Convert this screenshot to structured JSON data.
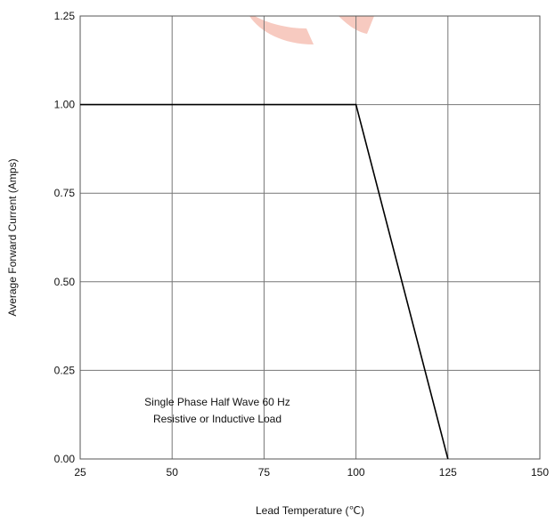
{
  "chart_data": {
    "type": "line",
    "xlabel": "Lead Temperature (℃)",
    "ylabel": "Average Forward Current (Amps)",
    "xlim": [
      25,
      150
    ],
    "ylim": [
      0,
      1.25
    ],
    "x_ticks": [
      "25",
      "50",
      "75",
      "100",
      "125",
      "150"
    ],
    "y_ticks": [
      "0.00",
      "0.25",
      "0.50",
      "0.75",
      "1.00",
      "1.25"
    ],
    "grid": true,
    "series": [
      {
        "x": [
          25,
          100,
          125
        ],
        "y": [
          1.0,
          1.0,
          0.0
        ],
        "color": "#000000"
      }
    ],
    "annotation": [
      "Single Phase Half Wave 60 Hz",
      "Resistive or Inductive Load"
    ],
    "watermark_color": "#f4b8ab"
  }
}
